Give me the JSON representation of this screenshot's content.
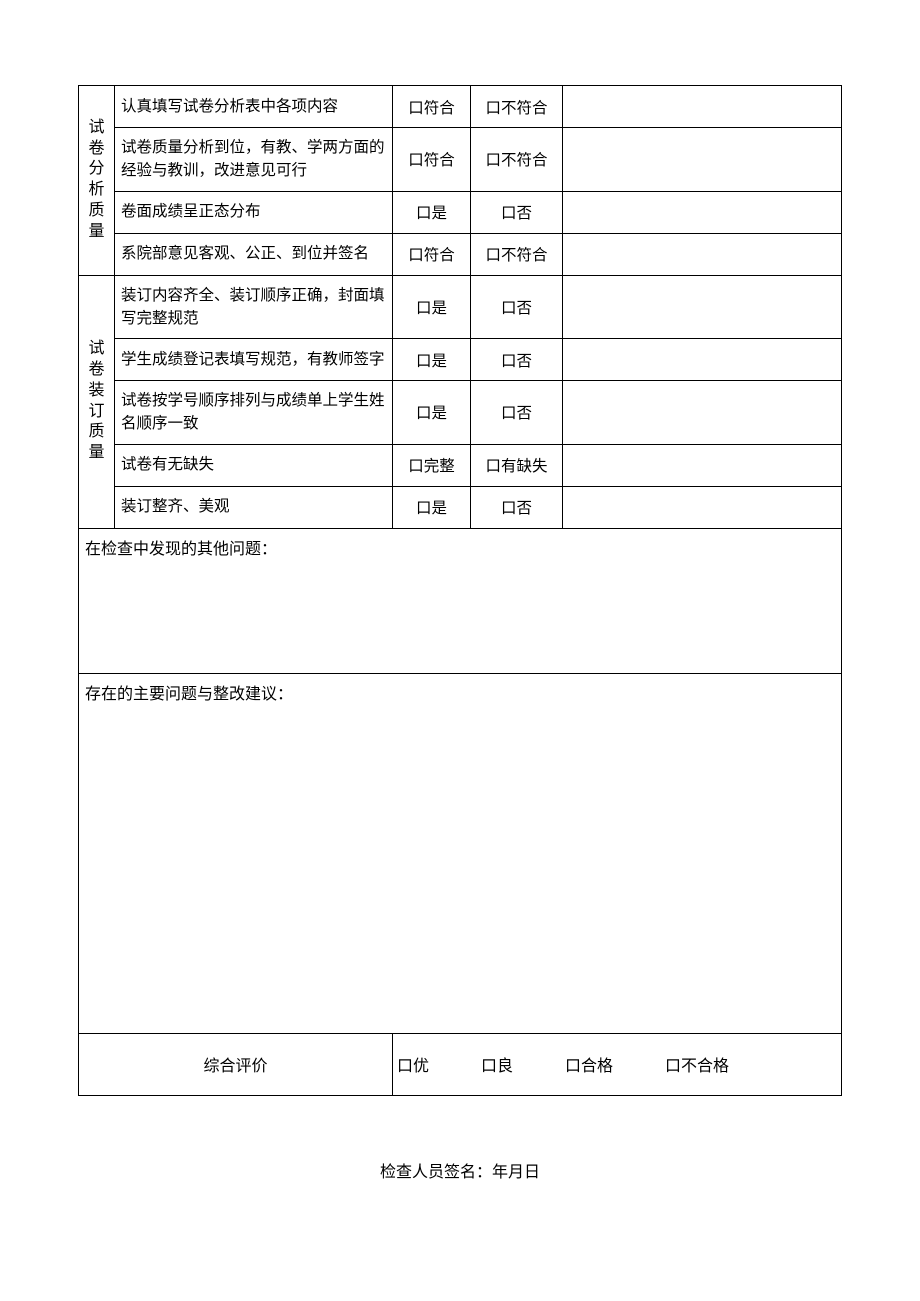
{
  "checkbox_glyph": "口",
  "sections": {
    "analysis": {
      "header": "试卷分析质量",
      "rows": [
        {
          "criterion": "认真填写试卷分析表中各项内容",
          "opt1": "口符合",
          "opt2": "口不符合"
        },
        {
          "criterion": "试卷质量分析到位，有教、学两方面的经验与教训，改进意见可行",
          "opt1": "口符合",
          "opt2": "口不符合"
        },
        {
          "criterion": "卷面成绩呈正态分布",
          "opt1": "口是",
          "opt2": "口否"
        },
        {
          "criterion": "系院部意见客观、公正、到位并签名",
          "opt1": "口符合",
          "opt2": "口不符合"
        }
      ]
    },
    "binding": {
      "header": "试卷装订质量",
      "rows": [
        {
          "criterion": "装订内容齐全、装订顺序正确，封面填写完整规范",
          "opt1": "口是",
          "opt2": "口否"
        },
        {
          "criterion": "学生成绩登记表填写规范，有教师签字",
          "opt1": "口是",
          "opt2": "口否"
        },
        {
          "criterion": "试卷按学号顺序排列与成绩单上学生姓名顺序一致",
          "opt1": "口是",
          "opt2": "口否"
        },
        {
          "criterion": "试卷有无缺失",
          "opt1": "口完整",
          "opt2": "口有缺失"
        },
        {
          "criterion": "装订整齐、美观",
          "opt1": "口是",
          "opt2": "口否"
        }
      ]
    }
  },
  "other_issues_label": "在检查中发现的其他问题：",
  "suggestions_label": "存在的主要问题与整改建议：",
  "rating": {
    "label": "综合评价",
    "opt1": "口优",
    "opt2": "口良",
    "opt3": "口合格",
    "opt4": "口不合格"
  },
  "signature_text": "检查人员签名：年月日"
}
